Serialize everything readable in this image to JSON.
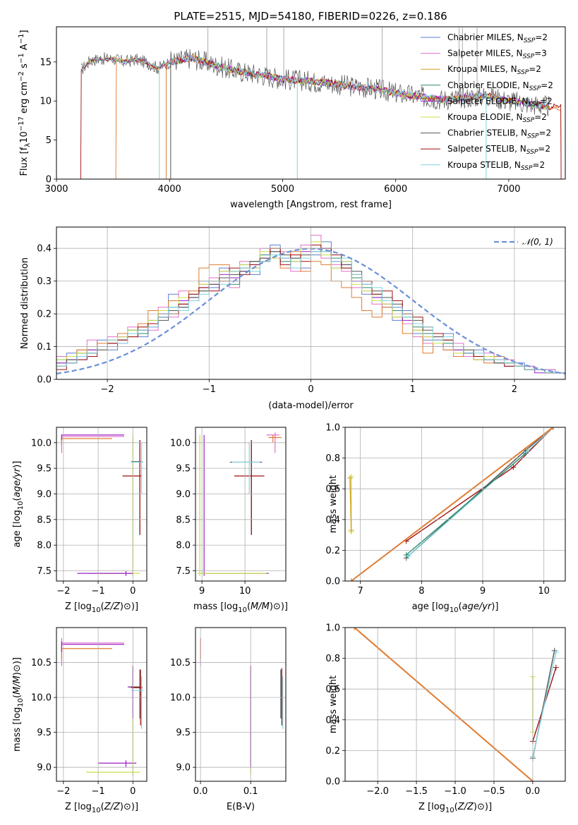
{
  "figure": {
    "title": "PLATE=2515, MJD=54180, FIBERID=0226, z=0.186"
  },
  "colors": {
    "Chabrier MILES": "#5b7fd4",
    "Salpeter MILES": "#e070c8",
    "Kroupa MILES": "#d4a017",
    "Chabrier ELODIE": "#2e8b6e",
    "Salpeter ELODIE": "#9b1fc7",
    "Kroupa ELODIE": "#c8e04a",
    "Chabrier STELIB": "#555555",
    "Salpeter STELIB": "#a01010",
    "Kroupa STELIB": "#7fd4e0",
    "orange": "#e07b30"
  },
  "chart_data": [
    {
      "type": "line",
      "panel": "spectrum",
      "xlabel": "wavelength [Angstrom, rest frame]",
      "ylabel": "Flux [f_λ 10^-17 erg cm^-2 s^-1 A^-1]",
      "ylabel_parts": {
        "a": "Flux [f",
        "sub": "λ",
        "b": "10",
        "sup1": "−17",
        "c": " erg cm",
        "sup2": "−2",
        "d": " s",
        "sup3": "−1",
        "e": " A",
        "sup4": "−1",
        "f": "]"
      },
      "xlim": [
        3000,
        7500
      ],
      "ylim": [
        0,
        19.5
      ],
      "xticks": [
        "3000",
        "4000",
        "5000",
        "6000",
        "7000"
      ],
      "yticks": [
        "0",
        "5",
        "10",
        "15"
      ],
      "legend_position": "upper right",
      "legend": [
        {
          "name": "Chabrier MILES",
          "nssp": "2"
        },
        {
          "name": "Salpeter MILES",
          "nssp": "3"
        },
        {
          "name": "Kroupa MILES",
          "nssp": "2"
        },
        {
          "name": "Chabrier ELODIE",
          "nssp": "2"
        },
        {
          "name": "Salpeter ELODIE",
          "nssp": "2"
        },
        {
          "name": "Kroupa ELODIE",
          "nssp": "2"
        },
        {
          "name": "Chabrier STELIB",
          "nssp": "2"
        },
        {
          "name": "Salpeter STELIB",
          "nssp": "2"
        },
        {
          "name": "Kroupa STELIB",
          "nssp": "2"
        }
      ],
      "continuum": {
        "x": [
          3220,
          3300,
          3400,
          3500,
          3600,
          3700,
          3800,
          3900,
          4000,
          4200,
          4400,
          4600,
          4800,
          5000,
          5200,
          5400,
          5600,
          5800,
          6000,
          6200,
          6400,
          6600,
          6800,
          7000,
          7200,
          7400
        ],
        "y": [
          14.0,
          15.2,
          15.4,
          15.4,
          15.0,
          15.3,
          14.9,
          14.2,
          15.0,
          15.5,
          14.6,
          13.8,
          13.4,
          12.8,
          12.6,
          12.3,
          11.9,
          11.6,
          11.0,
          10.6,
          10.2,
          10.4,
          10.7,
          10.0,
          9.6,
          9.2
        ]
      },
      "data_x_range": [
        3220,
        7460
      ]
    },
    {
      "type": "line",
      "panel": "residual_histogram",
      "xlabel": "(data-model)/error",
      "ylabel": "Normed distribution",
      "xlim": [
        -2.5,
        2.5
      ],
      "ylim": [
        0,
        0.465
      ],
      "xticks": [
        "−2",
        "−1",
        "0",
        "1",
        "2"
      ],
      "yticks": [
        "0.0",
        "0.1",
        "0.2",
        "0.3",
        "0.4"
      ],
      "legend": "𝒩(0, 1)",
      "legend_position": "upper right",
      "bin_centers": [
        -2.45,
        -2.35,
        -2.25,
        -2.15,
        -2.05,
        -1.95,
        -1.85,
        -1.75,
        -1.65,
        -1.55,
        -1.45,
        -1.35,
        -1.25,
        -1.15,
        -1.05,
        -0.95,
        -0.85,
        -0.75,
        -0.65,
        -0.55,
        -0.45,
        -0.35,
        -0.25,
        -0.15,
        -0.05,
        0.05,
        0.15,
        0.25,
        0.35,
        0.45,
        0.55,
        0.65,
        0.75,
        0.85,
        0.95,
        1.05,
        1.15,
        1.25,
        1.35,
        1.45,
        1.55,
        1.65,
        1.75,
        1.85,
        1.95,
        2.05,
        2.15,
        2.25,
        2.35,
        2.45
      ],
      "series": [
        {
          "name": "Chabrier MILES",
          "values": [
            0.05,
            0.08,
            0.06,
            0.1,
            0.12,
            0.09,
            0.14,
            0.15,
            0.13,
            0.18,
            0.2,
            0.26,
            0.22,
            0.24,
            0.3,
            0.28,
            0.34,
            0.3,
            0.35,
            0.32,
            0.38,
            0.41,
            0.37,
            0.36,
            0.34,
            0.38,
            0.42,
            0.34,
            0.36,
            0.3,
            0.26,
            0.25,
            0.22,
            0.18,
            0.21,
            0.14,
            0.12,
            0.1,
            0.14,
            0.1,
            0.08,
            0.09,
            0.06,
            0.07,
            0.05,
            0.05,
            0.04,
            0.03,
            0.03,
            0.02
          ]
        },
        {
          "name": "Salpeter MILES",
          "values": [
            0.07,
            0.06,
            0.09,
            0.12,
            0.1,
            0.13,
            0.11,
            0.16,
            0.17,
            0.15,
            0.22,
            0.19,
            0.27,
            0.25,
            0.29,
            0.31,
            0.33,
            0.28,
            0.36,
            0.34,
            0.4,
            0.37,
            0.39,
            0.33,
            0.41,
            0.44,
            0.37,
            0.35,
            0.33,
            0.28,
            0.27,
            0.23,
            0.2,
            0.22,
            0.17,
            0.13,
            0.11,
            0.13,
            0.09,
            0.11,
            0.07,
            0.06,
            0.08,
            0.05,
            0.06,
            0.04,
            0.04,
            0.03,
            0.03,
            0.02
          ]
        },
        {
          "name": "Kroupa MILES",
          "values": [
            0.04,
            0.07,
            0.09,
            0.08,
            0.11,
            0.12,
            0.14,
            0.13,
            0.17,
            0.21,
            0.19,
            0.24,
            0.23,
            0.27,
            0.34,
            0.35,
            0.35,
            0.33,
            0.34,
            0.36,
            0.37,
            0.4,
            0.34,
            0.39,
            0.33,
            0.36,
            0.35,
            0.3,
            0.28,
            0.25,
            0.21,
            0.19,
            0.22,
            0.19,
            0.14,
            0.15,
            0.08,
            0.12,
            0.09,
            0.07,
            0.08,
            0.06,
            0.05,
            0.07,
            0.05,
            0.04,
            0.03,
            0.03,
            0.02,
            0.02
          ]
        },
        {
          "name": "Chabrier ELODIE",
          "values": [
            0.06,
            0.05,
            0.08,
            0.09,
            0.1,
            0.11,
            0.12,
            0.15,
            0.14,
            0.17,
            0.19,
            0.22,
            0.23,
            0.26,
            0.27,
            0.3,
            0.31,
            0.29,
            0.34,
            0.36,
            0.38,
            0.39,
            0.36,
            0.37,
            0.38,
            0.4,
            0.39,
            0.37,
            0.34,
            0.31,
            0.28,
            0.26,
            0.24,
            0.21,
            0.19,
            0.16,
            0.14,
            0.12,
            0.11,
            0.09,
            0.08,
            0.07,
            0.06,
            0.05,
            0.05,
            0.04,
            0.03,
            0.03,
            0.02,
            0.02
          ]
        },
        {
          "name": "Salpeter ELODIE",
          "values": [
            0.05,
            0.06,
            0.07,
            0.09,
            0.1,
            0.1,
            0.13,
            0.14,
            0.15,
            0.16,
            0.2,
            0.21,
            0.24,
            0.25,
            0.28,
            0.29,
            0.32,
            0.31,
            0.33,
            0.35,
            0.37,
            0.38,
            0.37,
            0.38,
            0.39,
            0.41,
            0.4,
            0.36,
            0.35,
            0.3,
            0.29,
            0.25,
            0.23,
            0.22,
            0.18,
            0.17,
            0.13,
            0.12,
            0.1,
            0.09,
            0.08,
            0.06,
            0.06,
            0.05,
            0.04,
            0.04,
            0.03,
            0.02,
            0.02,
            0.02
          ]
        },
        {
          "name": "Kroupa ELODIE",
          "values": [
            0.06,
            0.07,
            0.08,
            0.1,
            0.09,
            0.12,
            0.13,
            0.15,
            0.16,
            0.18,
            0.21,
            0.2,
            0.25,
            0.24,
            0.29,
            0.3,
            0.33,
            0.32,
            0.35,
            0.34,
            0.39,
            0.37,
            0.38,
            0.36,
            0.4,
            0.42,
            0.38,
            0.34,
            0.36,
            0.29,
            0.27,
            0.24,
            0.23,
            0.19,
            0.2,
            0.15,
            0.13,
            0.11,
            0.12,
            0.08,
            0.09,
            0.06,
            0.07,
            0.05,
            0.05,
            0.04,
            0.03,
            0.03,
            0.02,
            0.02
          ]
        },
        {
          "name": "Chabrier STELIB",
          "values": [
            0.04,
            0.06,
            0.07,
            0.08,
            0.09,
            0.11,
            0.12,
            0.14,
            0.15,
            0.17,
            0.18,
            0.21,
            0.22,
            0.25,
            0.27,
            0.29,
            0.31,
            0.32,
            0.33,
            0.36,
            0.37,
            0.39,
            0.38,
            0.37,
            0.38,
            0.39,
            0.4,
            0.38,
            0.35,
            0.33,
            0.3,
            0.27,
            0.25,
            0.23,
            0.2,
            0.18,
            0.15,
            0.13,
            0.12,
            0.1,
            0.09,
            0.07,
            0.06,
            0.05,
            0.05,
            0.04,
            0.03,
            0.03,
            0.02,
            0.02
          ]
        },
        {
          "name": "Salpeter STELIB",
          "values": [
            0.03,
            0.05,
            0.06,
            0.07,
            0.1,
            0.11,
            0.12,
            0.13,
            0.16,
            0.17,
            0.19,
            0.2,
            0.23,
            0.26,
            0.28,
            0.27,
            0.3,
            0.34,
            0.32,
            0.35,
            0.36,
            0.4,
            0.35,
            0.38,
            0.36,
            0.41,
            0.4,
            0.38,
            0.34,
            0.32,
            0.3,
            0.26,
            0.27,
            0.24,
            0.2,
            0.19,
            0.16,
            0.14,
            0.12,
            0.1,
            0.08,
            0.07,
            0.06,
            0.06,
            0.04,
            0.04,
            0.03,
            0.03,
            0.02,
            0.02
          ]
        },
        {
          "name": "Kroupa STELIB",
          "values": [
            0.04,
            0.05,
            0.07,
            0.08,
            0.1,
            0.12,
            0.11,
            0.14,
            0.15,
            0.16,
            0.19,
            0.22,
            0.21,
            0.24,
            0.26,
            0.3,
            0.29,
            0.33,
            0.34,
            0.33,
            0.36,
            0.38,
            0.37,
            0.34,
            0.37,
            0.39,
            0.39,
            0.36,
            0.37,
            0.32,
            0.29,
            0.28,
            0.24,
            0.22,
            0.19,
            0.17,
            0.16,
            0.12,
            0.13,
            0.1,
            0.08,
            0.08,
            0.06,
            0.06,
            0.05,
            0.04,
            0.03,
            0.03,
            0.02,
            0.02
          ]
        }
      ]
    },
    {
      "type": "scatter",
      "panel": "age_vs_Z",
      "xlabel": "Z [log10(Z/Z⊙)]",
      "ylabel": "age  [log10(age/yr)]",
      "xlim": [
        -2.2,
        0.4
      ],
      "ylim": [
        7.3,
        10.3
      ],
      "xticks": [
        "−2",
        "−1",
        "0"
      ],
      "yticks": [
        "7.5",
        "8.0",
        "8.5",
        "9.0",
        "9.5",
        "10.0"
      ]
    },
    {
      "type": "scatter",
      "panel": "age_vs_mass",
      "xlabel": "mass [log10(M/M⊙)]",
      "ylabel": "",
      "xlim": [
        8.85,
        10.95
      ],
      "ylim": [
        7.3,
        10.3
      ],
      "xticks": [
        "9",
        "10"
      ],
      "yticks": [
        "7.5",
        "8.0",
        "8.5",
        "9.0",
        "9.5",
        "10.0"
      ]
    },
    {
      "type": "line",
      "panel": "massweight_vs_age",
      "xlabel": "age  [log10(age/yr)]",
      "ylabel": "mass weight",
      "xlim": [
        6.75,
        10.35
      ],
      "ylim": [
        0,
        1
      ],
      "xticks": [
        "7",
        "8",
        "9",
        "10"
      ],
      "yticks": [
        "0.0",
        "0.2",
        "0.4",
        "0.6",
        "0.8",
        "1.0"
      ]
    },
    {
      "type": "scatter",
      "panel": "mass_vs_Z",
      "xlabel": "Z [log10(Z/Z⊙)]",
      "ylabel": "mass [log10(M/M⊙)]",
      "xlim": [
        -2.2,
        0.4
      ],
      "ylim": [
        8.8,
        11.0
      ],
      "xticks": [
        "−2",
        "−1",
        "0"
      ],
      "yticks": [
        "9.0",
        "9.5",
        "10.0",
        "10.5"
      ]
    },
    {
      "type": "scatter",
      "panel": "mass_vs_EBV",
      "xlabel": "E(B-V)",
      "ylabel": "",
      "xlim": [
        -0.01,
        0.17
      ],
      "ylim": [
        8.8,
        11.0
      ],
      "xticks": [
        "0.0",
        "0.1"
      ],
      "yticks": [
        "9.0",
        "9.5",
        "10.0",
        "10.5"
      ]
    },
    {
      "type": "line",
      "panel": "massweight_vs_Z",
      "xlabel": "Z [log10(Z/Z⊙)]",
      "ylabel": "mass weight",
      "xlim": [
        -2.42,
        0.42
      ],
      "ylim": [
        0,
        1
      ],
      "xticks": [
        "−2.0",
        "−1.5",
        "−1.0",
        "−0.5",
        "0.0"
      ],
      "yticks": [
        "0.0",
        "0.2",
        "0.4",
        "0.6",
        "0.8",
        "1.0"
      ]
    }
  ]
}
